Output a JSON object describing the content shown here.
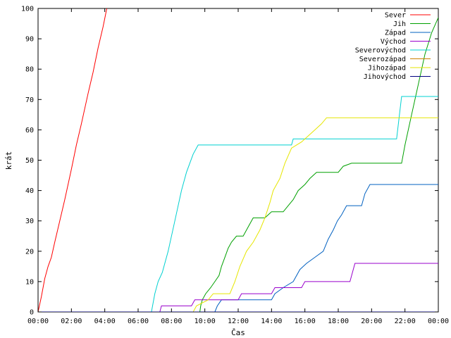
{
  "chart_data": {
    "type": "line",
    "title": "",
    "xlabel": "Čas",
    "ylabel": "krát",
    "xlim": [
      0,
      24
    ],
    "ylim": [
      0,
      100
    ],
    "x_ticks": [
      {
        "value": 0,
        "label": "00:00"
      },
      {
        "value": 2,
        "label": "02:00"
      },
      {
        "value": 4,
        "label": "04:00"
      },
      {
        "value": 6,
        "label": "06:00"
      },
      {
        "value": 8,
        "label": "08:00"
      },
      {
        "value": 10,
        "label": "10:00"
      },
      {
        "value": 12,
        "label": "12:00"
      },
      {
        "value": 14,
        "label": "14:00"
      },
      {
        "value": 16,
        "label": "16:00"
      },
      {
        "value": 18,
        "label": "18:00"
      },
      {
        "value": 20,
        "label": "20:00"
      },
      {
        "value": 22,
        "label": "22:00"
      },
      {
        "value": 24,
        "label": "00:00"
      }
    ],
    "y_ticks": [
      0,
      10,
      20,
      30,
      40,
      50,
      60,
      70,
      80,
      90,
      100
    ],
    "grid": false,
    "legend_position": "top-right",
    "series": [
      {
        "name": "Sever",
        "color": "#ff0000",
        "points": [
          [
            0,
            0
          ],
          [
            0.2,
            5
          ],
          [
            0.4,
            11
          ],
          [
            0.6,
            15
          ],
          [
            0.8,
            18
          ],
          [
            1.0,
            23
          ],
          [
            1.3,
            30
          ],
          [
            1.6,
            37
          ],
          [
            2.0,
            47
          ],
          [
            2.3,
            55
          ],
          [
            2.6,
            62
          ],
          [
            3.0,
            72
          ],
          [
            3.3,
            79
          ],
          [
            3.6,
            87
          ],
          [
            3.9,
            94
          ],
          [
            4.05,
            98
          ],
          [
            4.12,
            100
          ]
        ]
      },
      {
        "name": "Jih",
        "color": "#00a000",
        "points": [
          [
            0,
            0
          ],
          [
            9.7,
            0
          ],
          [
            9.75,
            2
          ],
          [
            9.85,
            4
          ],
          [
            10.05,
            6
          ],
          [
            10.35,
            8
          ],
          [
            10.6,
            10
          ],
          [
            10.85,
            12
          ],
          [
            11.0,
            15
          ],
          [
            11.2,
            18
          ],
          [
            11.4,
            21
          ],
          [
            11.6,
            23
          ],
          [
            11.9,
            25
          ],
          [
            12.3,
            25
          ],
          [
            12.6,
            28
          ],
          [
            12.9,
            31
          ],
          [
            13.6,
            31
          ],
          [
            14.0,
            33
          ],
          [
            14.7,
            33
          ],
          [
            15.0,
            35
          ],
          [
            15.3,
            37
          ],
          [
            15.6,
            40
          ],
          [
            16.0,
            42
          ],
          [
            16.3,
            44
          ],
          [
            16.7,
            46
          ],
          [
            18.0,
            46
          ],
          [
            18.3,
            48
          ],
          [
            18.8,
            49
          ],
          [
            21.8,
            49
          ],
          [
            22.0,
            55
          ],
          [
            22.4,
            65
          ],
          [
            22.8,
            75
          ],
          [
            23.2,
            85
          ],
          [
            23.6,
            92
          ],
          [
            24.0,
            97
          ]
        ]
      },
      {
        "name": "Západ",
        "color": "#0060c0",
        "points": [
          [
            0,
            0
          ],
          [
            10.6,
            0
          ],
          [
            10.75,
            2
          ],
          [
            11.0,
            4
          ],
          [
            14.0,
            4
          ],
          [
            14.2,
            6
          ],
          [
            14.7,
            8
          ],
          [
            15.3,
            10
          ],
          [
            15.7,
            14
          ],
          [
            16.1,
            16
          ],
          [
            16.6,
            18
          ],
          [
            17.1,
            20
          ],
          [
            17.4,
            24
          ],
          [
            17.7,
            27
          ],
          [
            17.95,
            30
          ],
          [
            18.2,
            32
          ],
          [
            18.5,
            35
          ],
          [
            19.4,
            35
          ],
          [
            19.6,
            39
          ],
          [
            19.9,
            42
          ],
          [
            24.0,
            42
          ]
        ]
      },
      {
        "name": "Východ",
        "color": "#9900cc",
        "points": [
          [
            0,
            0
          ],
          [
            7.3,
            0
          ],
          [
            7.4,
            2
          ],
          [
            9.2,
            2
          ],
          [
            9.4,
            4
          ],
          [
            12.0,
            4
          ],
          [
            12.2,
            6
          ],
          [
            14.0,
            6
          ],
          [
            14.2,
            8
          ],
          [
            15.8,
            8
          ],
          [
            16.0,
            10
          ],
          [
            18.7,
            10
          ],
          [
            19.0,
            16
          ],
          [
            24.0,
            16
          ]
        ]
      },
      {
        "name": "Severovýchod",
        "color": "#00d0d0",
        "points": [
          [
            0,
            0
          ],
          [
            6.8,
            0
          ],
          [
            7.0,
            6
          ],
          [
            7.2,
            10
          ],
          [
            7.45,
            13
          ],
          [
            7.8,
            20
          ],
          [
            8.2,
            30
          ],
          [
            8.6,
            40
          ],
          [
            8.9,
            46
          ],
          [
            9.3,
            52
          ],
          [
            9.6,
            55
          ],
          [
            15.2,
            55
          ],
          [
            15.3,
            57
          ],
          [
            21.5,
            57
          ],
          [
            21.8,
            71
          ],
          [
            24.0,
            71
          ]
        ]
      },
      {
        "name": "Severozápad",
        "color": "#cc8000",
        "points": [
          [
            0,
            0
          ],
          [
            24.0,
            0
          ]
        ]
      },
      {
        "name": "Jihozápad",
        "color": "#e6e600",
        "points": [
          [
            0,
            0
          ],
          [
            9.3,
            0
          ],
          [
            9.5,
            2
          ],
          [
            10.2,
            4
          ],
          [
            10.5,
            6
          ],
          [
            11.5,
            6
          ],
          [
            11.8,
            10
          ],
          [
            12.1,
            15
          ],
          [
            12.5,
            20
          ],
          [
            12.9,
            23
          ],
          [
            13.3,
            27
          ],
          [
            13.6,
            31
          ],
          [
            13.9,
            36
          ],
          [
            14.1,
            40
          ],
          [
            14.5,
            44
          ],
          [
            14.8,
            49
          ],
          [
            15.2,
            54
          ],
          [
            15.8,
            56
          ],
          [
            16.2,
            58
          ],
          [
            16.6,
            60
          ],
          [
            17.0,
            62
          ],
          [
            17.3,
            64
          ],
          [
            24.0,
            64
          ]
        ]
      },
      {
        "name": "Jihovýchod",
        "color": "#000080",
        "points": [
          [
            0,
            0
          ],
          [
            24.0,
            0
          ]
        ]
      }
    ]
  }
}
